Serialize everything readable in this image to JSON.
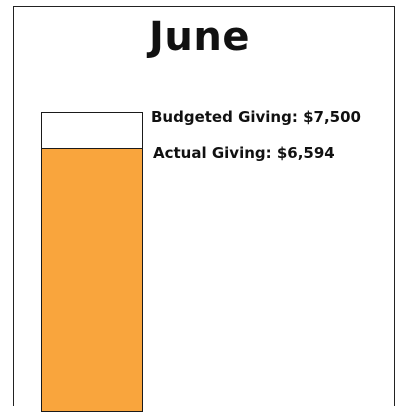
{
  "chart_data": {
    "type": "bar",
    "title": "June",
    "budgeted_label": "Budgeted Giving: $7,500",
    "actual_label": "Actual Giving: $6,594",
    "budget": 7500,
    "actual": 6594,
    "colors": {
      "fill": "#f9a53d",
      "outline": "#1a1a1a"
    }
  }
}
